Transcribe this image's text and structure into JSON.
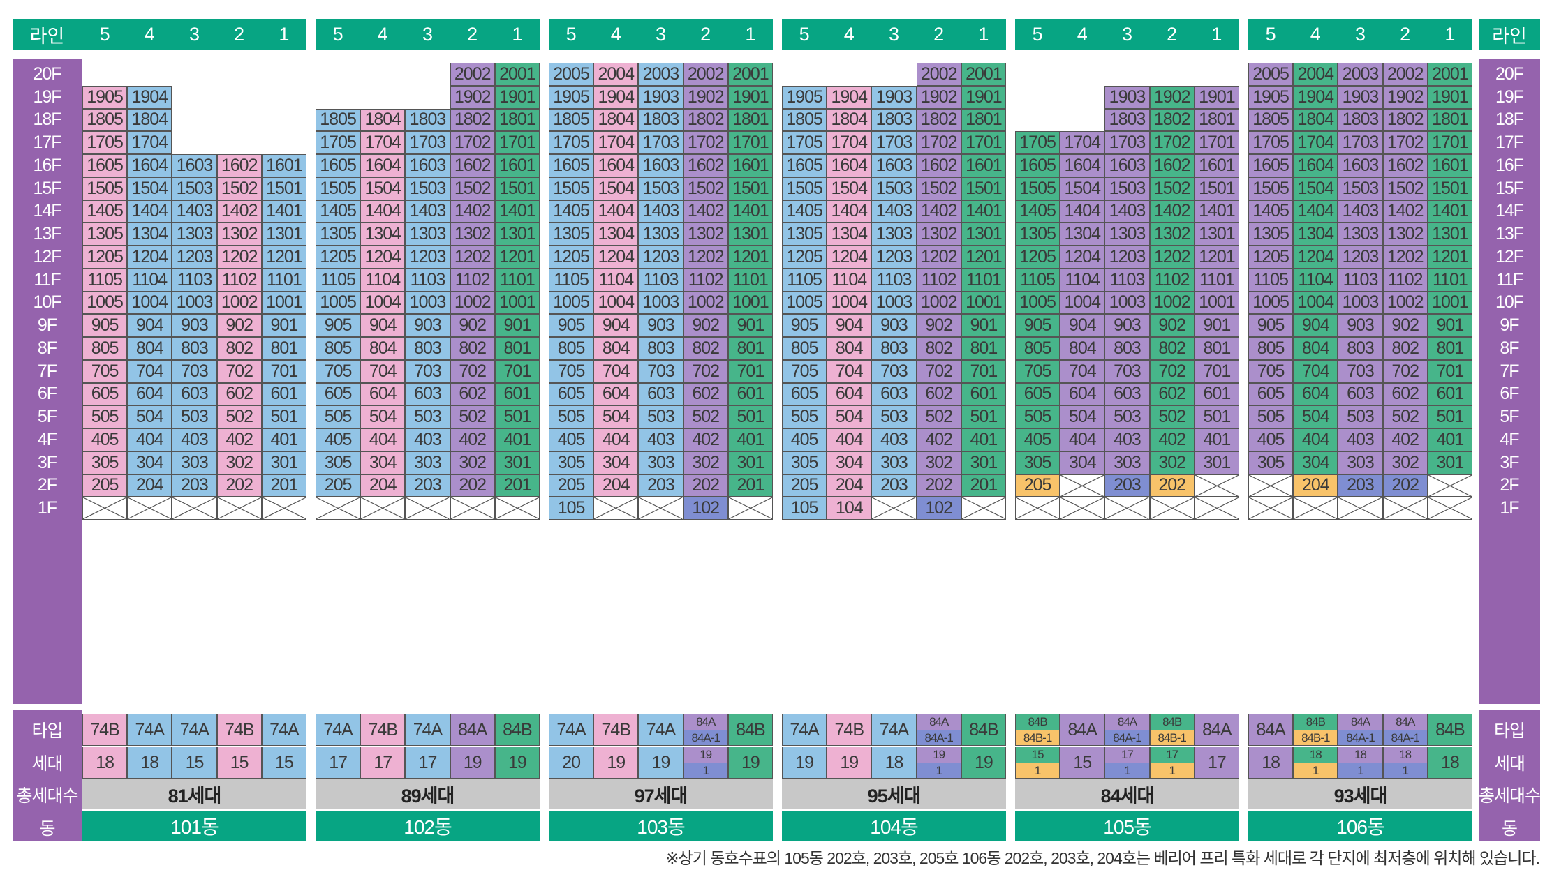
{
  "labels": {
    "line": "라인",
    "type": "타입",
    "households": "세대",
    "total": "총세대수",
    "dong": "동"
  },
  "floors": [
    "20F",
    "19F",
    "18F",
    "17F",
    "16F",
    "15F",
    "14F",
    "13F",
    "12F",
    "11F",
    "10F",
    "9F",
    "8F",
    "7F",
    "6F",
    "5F",
    "4F",
    "3F",
    "2F",
    "1F"
  ],
  "line_numbers": [
    "5",
    "4",
    "3",
    "2",
    "1"
  ],
  "colors": {
    "pink": "#eeb1d2",
    "blue": "#92c4e6",
    "purple": "#ab8fcb",
    "green": "#47b58a",
    "yellow": "#f8c36a",
    "darkblue": "#7f8ed2",
    "header_green": "#07a583",
    "side_purple": "#9563ad",
    "total_gray": "#c8c8c8"
  },
  "note": "※상기 동호수표의 105동 202호, 203호, 205호 106동 202호, 203호, 204호는 베리어 프리 특화 세대로 각 단지에 최저층에 위치해 있습니다.",
  "buildings": [
    {
      "name": "101동",
      "total": "81세대",
      "line_colors": [
        "pink",
        "blue",
        "blue",
        "pink",
        "blue"
      ],
      "top_floor": [
        19,
        19,
        16,
        16,
        16
      ],
      "f1": [
        "x",
        "x",
        "x",
        "x",
        "x"
      ],
      "f2": [
        null,
        null,
        null,
        null,
        null
      ],
      "types": [
        {
          "t": "74B"
        },
        {
          "t": "74A"
        },
        {
          "t": "74A"
        },
        {
          "t": "74B"
        },
        {
          "t": "74A"
        }
      ],
      "counts": [
        {
          "n": "18"
        },
        {
          "n": "18"
        },
        {
          "n": "15"
        },
        {
          "n": "15"
        },
        {
          "n": "15"
        }
      ]
    },
    {
      "name": "102동",
      "total": "89세대",
      "line_colors": [
        "blue",
        "pink",
        "blue",
        "purple",
        "green"
      ],
      "top_floor": [
        18,
        18,
        18,
        20,
        20
      ],
      "f1": [
        "x",
        "x",
        "x",
        "x",
        "x"
      ],
      "f2": [
        null,
        null,
        null,
        null,
        null
      ],
      "types": [
        {
          "t": "74A"
        },
        {
          "t": "74B"
        },
        {
          "t": "74A"
        },
        {
          "t": "84A"
        },
        {
          "t": "84B"
        }
      ],
      "counts": [
        {
          "n": "17"
        },
        {
          "n": "17"
        },
        {
          "n": "17"
        },
        {
          "n": "19"
        },
        {
          "n": "19"
        }
      ]
    },
    {
      "name": "103동",
      "total": "97세대",
      "line_colors": [
        "blue",
        "pink",
        "blue",
        "purple",
        "green"
      ],
      "top_floor": [
        20,
        20,
        20,
        20,
        20
      ],
      "f1": [
        "unit",
        "x",
        "x",
        "darkblue",
        "x"
      ],
      "f2": [
        null,
        null,
        null,
        null,
        null
      ],
      "types": [
        {
          "t": "74A"
        },
        {
          "t": "74B"
        },
        {
          "t": "74A"
        },
        {
          "t": "84A",
          "t2": "84A-1",
          "c2": "darkblue"
        },
        {
          "t": "84B"
        }
      ],
      "counts": [
        {
          "n": "20"
        },
        {
          "n": "19"
        },
        {
          "n": "19"
        },
        {
          "n": "19",
          "n2": "1",
          "c2": "darkblue"
        },
        {
          "n": "19"
        }
      ]
    },
    {
      "name": "104동",
      "total": "95세대",
      "line_colors": [
        "blue",
        "pink",
        "blue",
        "purple",
        "green"
      ],
      "top_floor": [
        19,
        19,
        19,
        20,
        20
      ],
      "f1": [
        "unit",
        "unit",
        "x",
        "darkblue",
        "x"
      ],
      "f2": [
        null,
        null,
        null,
        null,
        null
      ],
      "types": [
        {
          "t": "74A"
        },
        {
          "t": "74B"
        },
        {
          "t": "74A"
        },
        {
          "t": "84A",
          "t2": "84A-1",
          "c2": "darkblue"
        },
        {
          "t": "84B"
        }
      ],
      "counts": [
        {
          "n": "19"
        },
        {
          "n": "19"
        },
        {
          "n": "18"
        },
        {
          "n": "19",
          "n2": "1",
          "c2": "darkblue"
        },
        {
          "n": "19"
        }
      ]
    },
    {
      "name": "105동",
      "total": "84세대",
      "line_colors": [
        "green",
        "purple",
        "purple",
        "green",
        "purple"
      ],
      "top_floor": [
        17,
        17,
        19,
        19,
        19
      ],
      "f1": [
        "x",
        "x",
        "x",
        "x",
        "x"
      ],
      "f2": [
        "yellow",
        "x",
        "darkblue",
        "yellow",
        null
      ],
      "types": [
        {
          "t": "84B",
          "t2": "84B-1",
          "c2": "yellow"
        },
        {
          "t": "84A"
        },
        {
          "t": "84A",
          "t2": "84A-1",
          "c2": "darkblue"
        },
        {
          "t": "84B",
          "t2": "84B-1",
          "c2": "yellow"
        },
        {
          "t": "84A"
        }
      ],
      "counts": [
        {
          "n": "15",
          "n2": "1",
          "c2": "yellow"
        },
        {
          "n": "15"
        },
        {
          "n": "17",
          "n2": "1",
          "c2": "darkblue"
        },
        {
          "n": "17",
          "n2": "1",
          "c2": "yellow"
        },
        {
          "n": "17"
        }
      ]
    },
    {
      "name": "106동",
      "total": "93세대",
      "line_colors": [
        "purple",
        "green",
        "purple",
        "purple",
        "green"
      ],
      "top_floor": [
        20,
        20,
        20,
        20,
        20
      ],
      "f1": [
        "x",
        "x",
        "x",
        "x",
        "x"
      ],
      "f2": [
        "x",
        "yellow",
        "darkblue",
        "darkblue",
        "x"
      ],
      "types": [
        {
          "t": "84A"
        },
        {
          "t": "84B",
          "t2": "84B-1",
          "c2": "yellow"
        },
        {
          "t": "84A",
          "t2": "84A-1",
          "c2": "darkblue"
        },
        {
          "t": "84A",
          "t2": "84A-1",
          "c2": "darkblue"
        },
        {
          "t": "84B"
        }
      ],
      "counts": [
        {
          "n": "18"
        },
        {
          "n": "18",
          "n2": "1",
          "c2": "yellow"
        },
        {
          "n": "18",
          "n2": "1",
          "c2": "darkblue"
        },
        {
          "n": "18",
          "n2": "1",
          "c2": "darkblue"
        },
        {
          "n": "18"
        }
      ]
    }
  ]
}
